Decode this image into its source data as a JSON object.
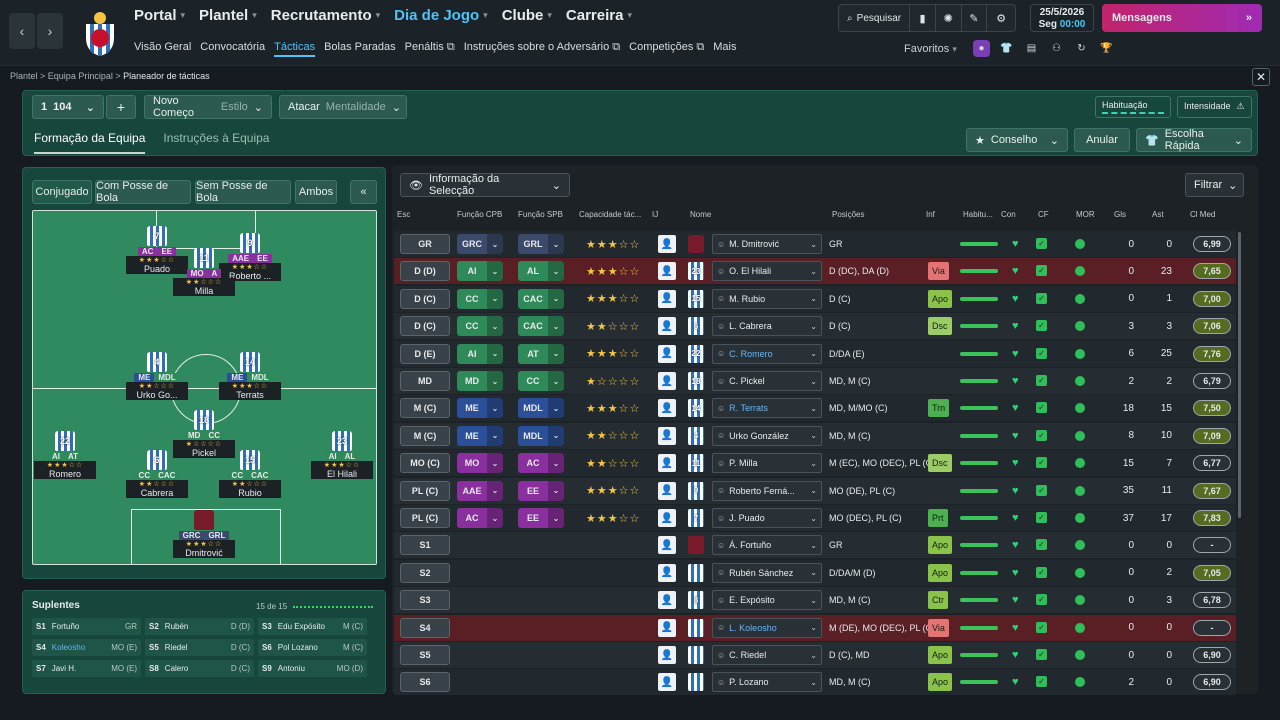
{
  "topnav": {
    "main": [
      {
        "label": "Portal",
        "active": false,
        "caret": true
      },
      {
        "label": "Plantel",
        "active": false,
        "caret": true
      },
      {
        "label": "Recrutamento",
        "active": false,
        "caret": true
      },
      {
        "label": "Dia de Jogo",
        "active": true,
        "caret": true
      },
      {
        "label": "Clube",
        "active": false,
        "caret": true
      },
      {
        "label": "Carreira",
        "active": false,
        "caret": true
      }
    ],
    "sub": [
      {
        "label": "Visão Geral",
        "active": false,
        "ext": false
      },
      {
        "label": "Convocatória",
        "active": false,
        "ext": false
      },
      {
        "label": "Tácticas",
        "active": true,
        "ext": false
      },
      {
        "label": "Bolas Paradas",
        "active": false,
        "ext": false
      },
      {
        "label": "Penáltis",
        "active": false,
        "ext": true
      },
      {
        "label": "Instruções sobre o Adversário",
        "active": false,
        "ext": true
      },
      {
        "label": "Competições",
        "active": false,
        "ext": true
      },
      {
        "label": "Mais",
        "active": false,
        "ext": false
      }
    ],
    "search_label": "Pesquisar",
    "date": "25/5/2026",
    "day": "Seg",
    "time": "00:00",
    "messages_label": "Mensagens",
    "favorites_label": "Favoritos"
  },
  "breadcrumb": {
    "items": [
      "Plantel",
      "Equipa Principal",
      "Planeador de tácticas"
    ]
  },
  "tactic": {
    "slot": "1",
    "formation_code": "104",
    "add_label": "+",
    "style_value": "Novo Começo",
    "style_label": "Estilo",
    "mentality_value": "Atacar",
    "mentality_label": "Mentalidade",
    "habituacao_label": "Habituação",
    "intensidade_label": "Intensidade",
    "tab_formation": "Formação da Equipa",
    "tab_instructions": "Instruções à Equipa",
    "conselho_label": "Conselho",
    "anular_label": "Anular",
    "escolha_label": "Escolha Rápida"
  },
  "pitch": {
    "segments": [
      "Conjugado",
      "Com Posse de Bola",
      "Sem Posse de Bola",
      "Ambos"
    ],
    "players": [
      {
        "num": "7",
        "roles": [
          "AC",
          "EE"
        ],
        "role_colors": [
          "#8a2f9e",
          "#8a2f9e"
        ],
        "stars": "★★★☆☆",
        "name": "Puado",
        "gk": false
      },
      {
        "num": "9",
        "roles": [
          "AAE",
          "EE"
        ],
        "role_colors": [
          "#8a2f9e",
          "#8a2f9e"
        ],
        "stars": "★★★☆☆",
        "name": "Roberto ...",
        "gk": false
      },
      {
        "num": "11",
        "roles": [
          "MO",
          "A"
        ],
        "role_colors": [
          "#8a2f9e",
          "#8a2f9e"
        ],
        "stars": "★★☆☆☆",
        "name": "Milla",
        "gk": false
      },
      {
        "num": "4",
        "roles": [
          "ME",
          "MDL"
        ],
        "role_colors": [
          "#2c4f9a",
          "#2f8a5a"
        ],
        "stars": "★★☆☆☆",
        "name": "Urko Go...",
        "gk": false
      },
      {
        "num": "14",
        "roles": [
          "ME",
          "MDL"
        ],
        "role_colors": [
          "#2c4f9a",
          "#2f8a5a"
        ],
        "stars": "★★★☆☆",
        "name": "Terrats",
        "gk": false
      },
      {
        "num": "18",
        "roles": [
          "MD",
          "CC"
        ],
        "role_colors": [
          "#2f8a5a",
          "#2f8a5a"
        ],
        "stars": "★☆☆☆☆",
        "name": "Pickel",
        "gk": false
      },
      {
        "num": "22",
        "roles": [
          "AI",
          "AT"
        ],
        "role_colors": [
          "#2f8a5a",
          "#2f8a5a"
        ],
        "stars": "★★★☆☆",
        "name": "Romero",
        "gk": false
      },
      {
        "num": "23",
        "roles": [
          "AI",
          "AL"
        ],
        "role_colors": [
          "#2f8a5a",
          "#2f8a5a"
        ],
        "stars": "★★★☆☆",
        "name": "El Hilali",
        "gk": false
      },
      {
        "num": "6",
        "roles": [
          "CC",
          "CAC"
        ],
        "role_colors": [
          "#2f8a5a",
          "#2f8a5a"
        ],
        "stars": "★★☆☆☆",
        "name": "Cabrera",
        "gk": false
      },
      {
        "num": "15",
        "roles": [
          "CC",
          "CAC"
        ],
        "role_colors": [
          "#2f8a5a",
          "#2f8a5a"
        ],
        "stars": "★★☆☆☆",
        "name": "Rubio",
        "gk": false
      },
      {
        "num": "",
        "roles": [
          "GRC",
          "GRL"
        ],
        "role_colors": [
          "#3b4a6b",
          "#3b4a6b"
        ],
        "stars": "★★★☆☆",
        "name": "Dmitrović",
        "gk": true
      }
    ]
  },
  "subs": {
    "title": "Suplentes",
    "count": "15 de 15",
    "items": [
      {
        "code": "S1",
        "name": "Fortuño",
        "pos": "GR",
        "highlight": false
      },
      {
        "code": "S2",
        "name": "Rubén",
        "pos": "D (D)",
        "highlight": false
      },
      {
        "code": "S3",
        "name": "Edu Expósito",
        "pos": "M (C)",
        "highlight": false
      },
      {
        "code": "S4",
        "name": "Koleosho",
        "pos": "MO (E)",
        "highlight": true
      },
      {
        "code": "S5",
        "name": "Riedel",
        "pos": "D (C)",
        "highlight": false
      },
      {
        "code": "S6",
        "name": "Pol Lozano",
        "pos": "M (C)",
        "highlight": false
      },
      {
        "code": "S7",
        "name": "Javi H.",
        "pos": "MO (E)",
        "highlight": false
      },
      {
        "code": "S8",
        "name": "Calero",
        "pos": "D (C)",
        "highlight": false
      },
      {
        "code": "S9",
        "name": "Antoniu",
        "pos": "MO (D)",
        "highlight": false
      }
    ]
  },
  "table": {
    "info_label": "Informação da Selecção",
    "filter_label": "Filtrar",
    "headers": [
      "Esc",
      "Função CPB",
      "Função SPB",
      "Capacidade tác...",
      "IJ",
      "Nome",
      "Posições",
      "Inf",
      "Habitu...",
      "Con",
      "CF",
      "MOR",
      "Gls",
      "Ast",
      "Cl Med"
    ],
    "rows": [
      {
        "esc": "GR",
        "cpb": "GRC",
        "spb": "GRL",
        "color": "#3b4a6b",
        "stars": "★★★☆☆",
        "num": "",
        "gk": true,
        "name": "M. Dmitrović",
        "name_color": "#e6ebee",
        "pos": "GR",
        "inf": "",
        "inf_color": "",
        "gls": "0",
        "ast": "0",
        "rating": "6,99",
        "rating_bg": "#2a3136",
        "bg": "#22292e"
      },
      {
        "esc": "D (D)",
        "cpb": "AI",
        "spb": "AL",
        "color": "#2f8a5a",
        "stars": "★★★☆☆",
        "num": "23",
        "gk": false,
        "name": "O. El Hilali",
        "name_color": "#e6ebee",
        "pos": "D (DC), DA (D)",
        "inf": "Via",
        "inf_color": "#e57373",
        "gls": "0",
        "ast": "23",
        "rating": "7,65",
        "rating_bg": "#556b1f",
        "bg": "#5a1f24"
      },
      {
        "esc": "D (C)",
        "cpb": "CC",
        "spb": "CAC",
        "color": "#2f8a5a",
        "stars": "★★★☆☆",
        "num": "15",
        "gk": false,
        "name": "M. Rubio",
        "name_color": "#e6ebee",
        "pos": "D (C)",
        "inf": "Apo",
        "inf_color": "#8bc34a",
        "gls": "0",
        "ast": "1",
        "rating": "7,00",
        "rating_bg": "#556b1f",
        "bg": "#22292e"
      },
      {
        "esc": "D (C)",
        "cpb": "CC",
        "spb": "CAC",
        "color": "#2f8a5a",
        "stars": "★★☆☆☆",
        "num": "6",
        "gk": false,
        "name": "L. Cabrera",
        "name_color": "#e6ebee",
        "pos": "D (C)",
        "inf": "Dsc",
        "inf_color": "#9ccc65",
        "gls": "3",
        "ast": "3",
        "rating": "7,06",
        "rating_bg": "#556b1f",
        "bg": "#262d32"
      },
      {
        "esc": "D (E)",
        "cpb": "AI",
        "spb": "AT",
        "color": "#2f8a5a",
        "stars": "★★★☆☆",
        "num": "22",
        "gk": false,
        "name": "C. Romero",
        "name_color": "#64b5f6",
        "pos": "D/DA (E)",
        "inf": "",
        "inf_color": "",
        "gls": "6",
        "ast": "25",
        "rating": "7,76",
        "rating_bg": "#556b1f",
        "bg": "#22292e"
      },
      {
        "esc": "MD",
        "cpb": "MD",
        "spb": "CC",
        "color": "#2f8a5a",
        "stars": "★☆☆☆☆",
        "num": "18",
        "gk": false,
        "name": "C. Pickel",
        "name_color": "#e6ebee",
        "pos": "MD, M (C)",
        "inf": "",
        "inf_color": "",
        "gls": "2",
        "ast": "2",
        "rating": "6,79",
        "rating_bg": "#2a3136",
        "bg": "#262d32"
      },
      {
        "esc": "M (C)",
        "cpb": "ME",
        "spb": "MDL",
        "color": "#2c4f9a",
        "stars": "★★★☆☆",
        "num": "14",
        "gk": false,
        "name": "R. Terrats",
        "name_color": "#64b5f6",
        "pos": "MD, M/MO (C)",
        "inf": "Trn",
        "inf_color": "#4caf50",
        "gls": "18",
        "ast": "15",
        "rating": "7,50",
        "rating_bg": "#556b1f",
        "bg": "#22292e"
      },
      {
        "esc": "M (C)",
        "cpb": "ME",
        "spb": "MDL",
        "color": "#2c4f9a",
        "stars": "★★☆☆☆",
        "num": "4",
        "gk": false,
        "name": "Urko González",
        "name_color": "#e6ebee",
        "pos": "MD, M (C)",
        "inf": "",
        "inf_color": "",
        "gls": "8",
        "ast": "10",
        "rating": "7,09",
        "rating_bg": "#556b1f",
        "bg": "#262d32"
      },
      {
        "esc": "MO (C)",
        "cpb": "MO",
        "spb": "AC",
        "color": "#8a2f9e",
        "stars": "★★☆☆☆",
        "num": "11",
        "gk": false,
        "name": "P. Milla",
        "name_color": "#e6ebee",
        "pos": "M (EC), MO (DEC), PL (C)",
        "inf": "Dsc",
        "inf_color": "#9ccc65",
        "gls": "15",
        "ast": "7",
        "rating": "6,77",
        "rating_bg": "#2a3136",
        "bg": "#22292e"
      },
      {
        "esc": "PL (C)",
        "cpb": "AAE",
        "spb": "EE",
        "color": "#8a2f9e",
        "stars": "★★★☆☆",
        "num": "9",
        "gk": false,
        "name": "Roberto Ferná...",
        "name_color": "#e6ebee",
        "pos": "MO (DE), PL (C)",
        "inf": "",
        "inf_color": "",
        "gls": "35",
        "ast": "11",
        "rating": "7,67",
        "rating_bg": "#556b1f",
        "bg": "#262d32"
      },
      {
        "esc": "PL (C)",
        "cpb": "AC",
        "spb": "EE",
        "color": "#8a2f9e",
        "stars": "★★★☆☆",
        "num": "7",
        "gk": false,
        "name": "J. Puado",
        "name_color": "#e6ebee",
        "pos": "MO (DEC), PL (C)",
        "inf": "Prt",
        "inf_color": "#4caf50",
        "gls": "37",
        "ast": "17",
        "rating": "7,83",
        "rating_bg": "#556b1f",
        "bg": "#22292e"
      },
      {
        "esc": "S1",
        "cpb": "",
        "spb": "",
        "color": "",
        "stars": "",
        "num": "",
        "gk": true,
        "name": "Á. Fortuño",
        "name_color": "#e6ebee",
        "pos": "GR",
        "inf": "Apo",
        "inf_color": "#8bc34a",
        "gls": "0",
        "ast": "0",
        "rating": "-",
        "rating_bg": "#2a3136",
        "bg": "#262d32"
      },
      {
        "esc": "S2",
        "cpb": "",
        "spb": "",
        "color": "",
        "stars": "",
        "num": "",
        "gk": false,
        "name": "Rubén Sánchez",
        "name_color": "#e6ebee",
        "pos": "D/DA/M (D)",
        "inf": "Apo",
        "inf_color": "#8bc34a",
        "gls": "0",
        "ast": "2",
        "rating": "7,05",
        "rating_bg": "#556b1f",
        "bg": "#22292e"
      },
      {
        "esc": "S3",
        "cpb": "",
        "spb": "",
        "color": "",
        "stars": "",
        "num": "8",
        "gk": false,
        "name": "E. Expósito",
        "name_color": "#e6ebee",
        "pos": "MD, M (C)",
        "inf": "Ctr",
        "inf_color": "#8bc34a",
        "gls": "0",
        "ast": "3",
        "rating": "6,78",
        "rating_bg": "#2a3136",
        "bg": "#262d32"
      },
      {
        "esc": "S4",
        "cpb": "",
        "spb": "",
        "color": "",
        "stars": "",
        "num": "",
        "gk": false,
        "name": "L. Koleosho",
        "name_color": "#64b5f6",
        "pos": "M (DE), MO (DEC), PL (C)",
        "inf": "Via",
        "inf_color": "#e57373",
        "gls": "0",
        "ast": "0",
        "rating": "-",
        "rating_bg": "#2a3136",
        "bg": "#5a1f24"
      },
      {
        "esc": "S5",
        "cpb": "",
        "spb": "",
        "color": "",
        "stars": "",
        "num": "",
        "gk": false,
        "name": "C. Riedel",
        "name_color": "#e6ebee",
        "pos": "D (C), MD",
        "inf": "Apo",
        "inf_color": "#8bc34a",
        "gls": "0",
        "ast": "0",
        "rating": "6,90",
        "rating_bg": "#2a3136",
        "bg": "#262d32"
      },
      {
        "esc": "S6",
        "cpb": "",
        "spb": "",
        "color": "",
        "stars": "",
        "num": "",
        "gk": false,
        "name": "P. Lozano",
        "name_color": "#e6ebee",
        "pos": "MD, M (C)",
        "inf": "Apo",
        "inf_color": "#8bc34a",
        "gls": "2",
        "ast": "0",
        "rating": "6,90",
        "rating_bg": "#2a3136",
        "bg": "#22292e"
      }
    ]
  }
}
